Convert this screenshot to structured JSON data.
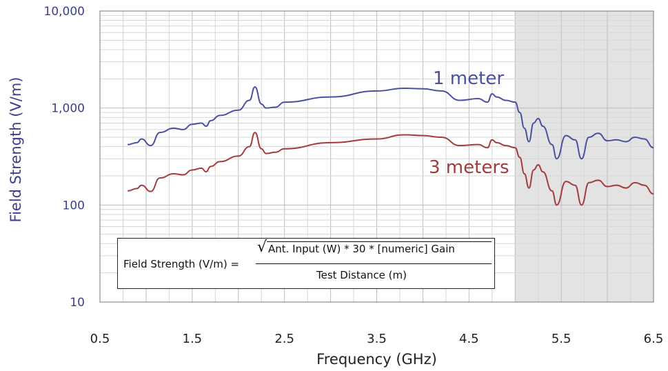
{
  "chart_data": {
    "type": "line",
    "title": "",
    "xlabel": "Frequency (GHz)",
    "ylabel": "Field Strength (V/m)",
    "xlim": [
      0.5,
      6.5
    ],
    "ylim": [
      10,
      10000
    ],
    "yscale": "log",
    "grid": true,
    "x_ticks": [
      "0.5",
      "1.5",
      "2.5",
      "3.5",
      "4.5",
      "5.5",
      "6.5"
    ],
    "y_ticks": [
      "10",
      "100",
      "1,000",
      "10,000"
    ],
    "shaded_region": {
      "x_start": 5.0,
      "x_end": 6.5
    },
    "series": [
      {
        "name": "1 meter",
        "color": "#4a4fa0",
        "x": [
          0.8,
          0.9,
          0.95,
          1.05,
          1.15,
          1.3,
          1.4,
          1.5,
          1.6,
          1.65,
          1.7,
          1.8,
          2.0,
          2.12,
          2.18,
          2.25,
          2.3,
          2.4,
          2.5,
          3.0,
          3.5,
          3.8,
          4.0,
          4.2,
          4.4,
          4.6,
          4.7,
          4.75,
          4.8,
          4.9,
          5.0,
          5.05,
          5.1,
          5.15,
          5.2,
          5.25,
          5.3,
          5.4,
          5.45,
          5.55,
          5.65,
          5.72,
          5.8,
          5.9,
          6.0,
          6.1,
          6.2,
          6.3,
          6.4,
          6.5
        ],
        "y": [
          420,
          440,
          480,
          410,
          560,
          620,
          600,
          680,
          700,
          650,
          740,
          840,
          950,
          1200,
          1650,
          1100,
          1000,
          1020,
          1150,
          1300,
          1500,
          1600,
          1580,
          1500,
          1200,
          1250,
          1150,
          1400,
          1300,
          1200,
          1150,
          900,
          620,
          450,
          700,
          780,
          650,
          420,
          300,
          520,
          470,
          300,
          500,
          550,
          460,
          470,
          450,
          500,
          480,
          390
        ]
      },
      {
        "name": "3 meters",
        "color": "#a53a3a",
        "x": [
          0.8,
          0.9,
          0.95,
          1.05,
          1.15,
          1.3,
          1.4,
          1.5,
          1.6,
          1.65,
          1.7,
          1.8,
          2.0,
          2.12,
          2.18,
          2.25,
          2.3,
          2.4,
          2.5,
          3.0,
          3.5,
          3.8,
          4.0,
          4.2,
          4.4,
          4.6,
          4.7,
          4.75,
          4.8,
          4.9,
          5.0,
          5.05,
          5.1,
          5.15,
          5.2,
          5.25,
          5.3,
          5.4,
          5.45,
          5.55,
          5.65,
          5.72,
          5.8,
          5.9,
          6.0,
          6.1,
          6.2,
          6.3,
          6.4,
          6.5
        ],
        "y": [
          140,
          148,
          160,
          138,
          190,
          210,
          205,
          230,
          240,
          220,
          250,
          280,
          320,
          400,
          560,
          380,
          340,
          350,
          380,
          440,
          480,
          530,
          520,
          500,
          410,
          420,
          390,
          470,
          440,
          410,
          390,
          310,
          210,
          150,
          230,
          260,
          220,
          140,
          100,
          175,
          160,
          100,
          170,
          180,
          155,
          160,
          150,
          170,
          160,
          130
        ]
      }
    ],
    "formula": {
      "lhs": "Field Strength (V/m) =",
      "numerator": "Ant. Input (W) * 30 * [numeric] Gain",
      "denominator": "Test Distance (m)"
    }
  }
}
